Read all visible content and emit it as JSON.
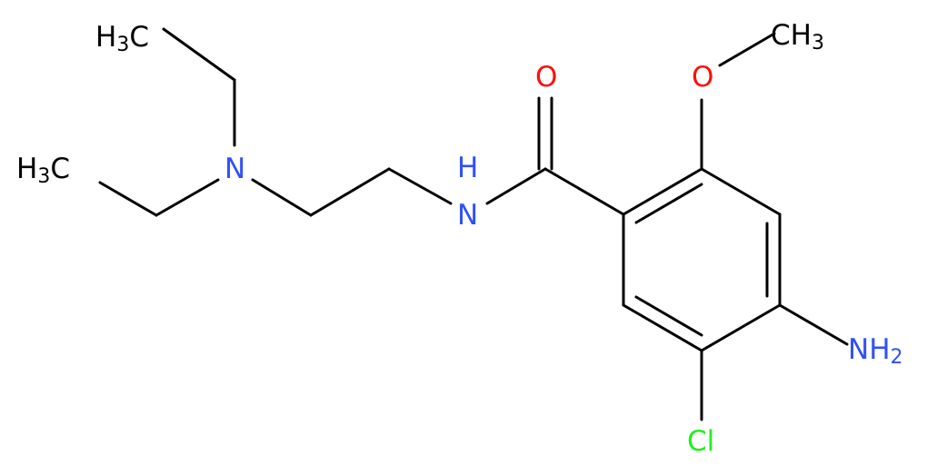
{
  "atoms": [
    {
      "main": "H",
      "sub": "3",
      "rest": "C"
    },
    {
      "main": "H",
      "sub": "3",
      "rest": "C"
    },
    {
      "main": "N"
    },
    {
      "main": "N"
    },
    {
      "main": "H"
    },
    {
      "main": "O"
    },
    {
      "main": "O"
    },
    {
      "main": "CH",
      "sub": "3"
    },
    {
      "main": "NH",
      "sub": "2"
    },
    {
      "main": "Cl"
    }
  ]
}
